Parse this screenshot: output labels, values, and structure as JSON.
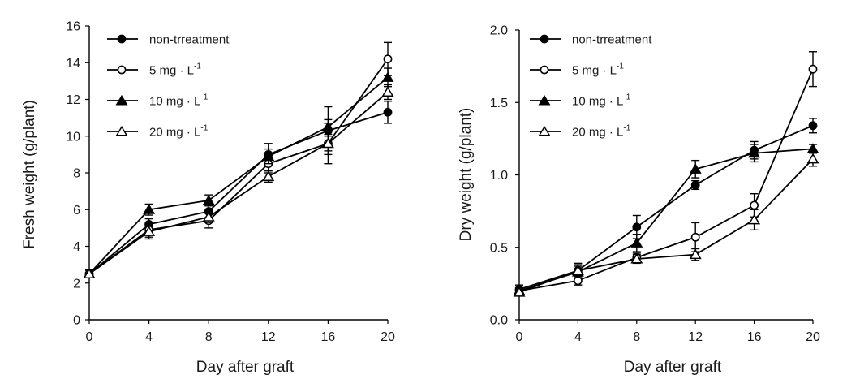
{
  "chart_data": [
    {
      "type": "line",
      "id": "fresh",
      "xlabel": "Day after graft",
      "ylabel": "Fresh weight (g/plant)",
      "x": [
        0,
        4,
        8,
        12,
        16,
        20
      ],
      "xlim": [
        0,
        20
      ],
      "ylim": [
        0,
        16
      ],
      "xticks": [
        "0",
        "4",
        "8",
        "12",
        "16",
        "20"
      ],
      "yticks": [
        "0",
        "2",
        "4",
        "6",
        "8",
        "10",
        "12",
        "14",
        "16"
      ],
      "legend_position": "top-left",
      "series": [
        {
          "name": "non-trreatment",
          "unit": "",
          "marker": "filled-circle",
          "values": [
            2.5,
            5.2,
            5.9,
            9.0,
            10.3,
            11.3
          ],
          "errors": [
            0.2,
            0.3,
            0.5,
            0.6,
            1.3,
            0.6
          ]
        },
        {
          "name": "5 mg · L",
          "unit": "-1",
          "marker": "open-circle",
          "values": [
            2.5,
            4.9,
            5.4,
            8.5,
            9.6,
            14.2
          ],
          "errors": [
            0.2,
            0.4,
            0.4,
            0.5,
            1.1,
            0.9
          ]
        },
        {
          "name": "10 mg · L",
          "unit": "-1",
          "marker": "filled-triangle",
          "values": [
            2.5,
            6.0,
            6.5,
            8.9,
            10.5,
            13.2
          ],
          "errors": [
            0.2,
            0.3,
            0.3,
            0.4,
            0.4,
            0.5
          ]
        },
        {
          "name": "20 mg · L",
          "unit": "-1",
          "marker": "open-triangle",
          "values": [
            2.5,
            4.8,
            5.6,
            7.8,
            9.6,
            12.4
          ],
          "errors": [
            0.2,
            0.4,
            0.3,
            0.3,
            0.4,
            0.4
          ]
        }
      ]
    },
    {
      "type": "line",
      "id": "dry",
      "xlabel": "Day after graft",
      "ylabel": "Dry weight (g/plant)",
      "x": [
        0,
        4,
        8,
        12,
        16,
        20
      ],
      "xlim": [
        0,
        20
      ],
      "ylim": [
        0,
        2.0
      ],
      "xticks": [
        "0",
        "4",
        "8",
        "12",
        "16",
        "20"
      ],
      "yticks": [
        "0.0",
        "0.5",
        "1.0",
        "1.5",
        "2.0"
      ],
      "legend_position": "top-left",
      "series": [
        {
          "name": "non-trreatment",
          "unit": "",
          "marker": "filled-circle",
          "values": [
            0.21,
            0.34,
            0.64,
            0.93,
            1.17,
            1.34
          ],
          "errors": [
            0.03,
            0.05,
            0.08,
            0.03,
            0.06,
            0.05
          ]
        },
        {
          "name": "5 mg · L",
          "unit": "-1",
          "marker": "open-circle",
          "values": [
            0.2,
            0.27,
            0.43,
            0.57,
            0.79,
            1.73
          ],
          "errors": [
            0.02,
            0.03,
            0.03,
            0.1,
            0.08,
            0.12
          ]
        },
        {
          "name": "10 mg · L",
          "unit": "-1",
          "marker": "filled-triangle",
          "values": [
            0.2,
            0.33,
            0.53,
            1.04,
            1.15,
            1.18
          ],
          "errors": [
            0.02,
            0.04,
            0.06,
            0.06,
            0.06,
            0.03
          ]
        },
        {
          "name": "20 mg · L",
          "unit": "-1",
          "marker": "open-triangle",
          "values": [
            0.19,
            0.34,
            0.42,
            0.45,
            0.69,
            1.11
          ],
          "errors": [
            0.02,
            0.04,
            0.03,
            0.04,
            0.07,
            0.05
          ]
        }
      ]
    }
  ]
}
